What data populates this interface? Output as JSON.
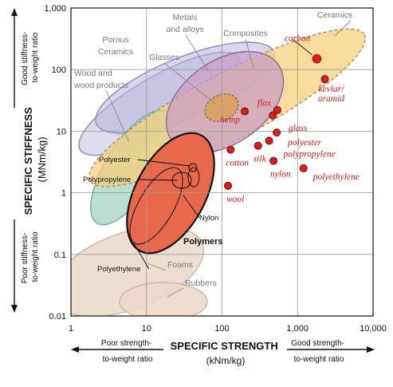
{
  "chart_data": {
    "type": "scatter",
    "xlabel": "SPECIFIC STRENGTH",
    "xlabel_units": "(kNm/kg)",
    "ylabel": "SPECIFIC STIFFNESS",
    "ylabel_units": "(MNm/kg)",
    "x_scale": "log",
    "y_scale": "log",
    "xlim": [
      1,
      10000
    ],
    "ylim": [
      0.01,
      1000
    ],
    "grid": true,
    "x_ticks": [
      "1",
      "10",
      "100",
      "1,000",
      "10,000"
    ],
    "y_ticks": [
      "0.01",
      "0.1",
      "1",
      "10",
      "100",
      "1,000"
    ],
    "x_notes": {
      "left": "Poor strength-to-weight ratio",
      "right": "Good strength-to-weight ratio"
    },
    "y_notes": {
      "top": "Good stiffness-to-weight ratio",
      "bottom": "Poor stiffness-to-weight ratio"
    },
    "regions": [
      {
        "label": "Ceramics",
        "color": "#f6cf7c"
      },
      {
        "label": "Metals and alloys",
        "color": "#b9b3dc"
      },
      {
        "label": "Porous Ceramics",
        "color": "#cfcfe8"
      },
      {
        "label": "Glasses",
        "color": "#d8a8a8"
      },
      {
        "label": "Composites",
        "color": "#c89bc6"
      },
      {
        "label": "Wood and wood products",
        "color": "#a9d7c3"
      },
      {
        "label": "Polymers",
        "color": "#e8684c"
      },
      {
        "label": "Foams",
        "color": "#ead9c8"
      },
      {
        "label": "Rubbers",
        "color": "#ead9c8"
      }
    ],
    "polymer_labels": [
      "Polyester",
      "Polypropylene",
      "Nylon",
      "Polyethylene"
    ],
    "fibers": [
      {
        "label": "carbon",
        "x": 1800,
        "y": 150
      },
      {
        "label": "kevlar/ aramid",
        "x": 2300,
        "y": 70
      },
      {
        "label": "flax",
        "x": 470,
        "y": 18
      },
      {
        "label": "glass",
        "x": 540,
        "y": 22
      },
      {
        "label": "hemp",
        "x": 200,
        "y": 21
      },
      {
        "label": "polyester",
        "x": 530,
        "y": 9.5
      },
      {
        "label": "polypropylene",
        "x": 420,
        "y": 7
      },
      {
        "label": "cotton",
        "x": 130,
        "y": 5
      },
      {
        "label": "silk",
        "x": 300,
        "y": 5.8
      },
      {
        "label": "nylon",
        "x": 480,
        "y": 3.3
      },
      {
        "label": "polyethylene",
        "x": 1200,
        "y": 2.5
      },
      {
        "label": "wool",
        "x": 120,
        "y": 1.3
      }
    ],
    "colors": {
      "fiber_marker": "#d81e1e",
      "fiber_label": "#d41e1e",
      "grid": "#9a9a9a"
    }
  }
}
